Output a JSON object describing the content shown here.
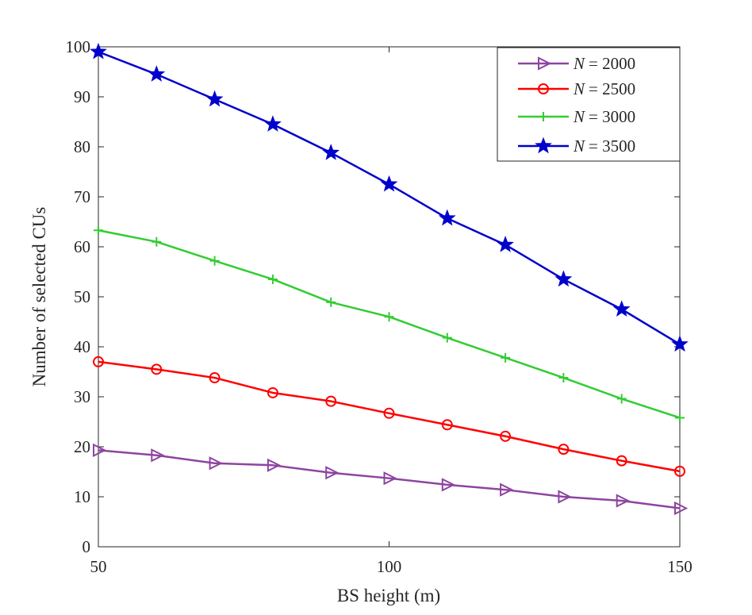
{
  "chart_data": {
    "type": "line",
    "title": "",
    "xlabel": "BS height (m)",
    "ylabel": "Number of  selected CUs",
    "xlim": [
      50,
      150
    ],
    "ylim": [
      0,
      100
    ],
    "xticks": [
      50,
      100,
      150
    ],
    "yticks": [
      0,
      10,
      20,
      30,
      40,
      50,
      60,
      70,
      80,
      90,
      100
    ],
    "grid": false,
    "legend_position": "top-right",
    "x": [
      50,
      60,
      70,
      80,
      90,
      100,
      110,
      120,
      130,
      140,
      150
    ],
    "series": [
      {
        "name": "N = 2000",
        "legend_var": "N",
        "legend_value": "= 2000",
        "marker": "triangle-right",
        "color": "#8E44A0",
        "values": [
          19.3,
          18.3,
          16.7,
          16.3,
          14.8,
          13.7,
          12.4,
          11.4,
          10.0,
          9.2,
          7.7
        ]
      },
      {
        "name": "N = 2500",
        "legend_var": "N",
        "legend_value": "= 2500",
        "marker": "circle",
        "color": "#FF0000",
        "values": [
          37.0,
          35.5,
          33.8,
          30.8,
          29.1,
          26.7,
          24.4,
          22.1,
          19.5,
          17.2,
          15.1
        ]
      },
      {
        "name": "N = 3000",
        "legend_var": "N",
        "legend_value": "= 3000",
        "marker": "plus",
        "color": "#33CC33",
        "values": [
          63.3,
          61.0,
          57.2,
          53.5,
          48.9,
          46.0,
          41.8,
          37.8,
          33.8,
          29.6,
          25.8
        ]
      },
      {
        "name": "N = 3500",
        "legend_var": "N",
        "legend_value": "= 3500",
        "marker": "star",
        "color": "#0000CC",
        "values": [
          99.0,
          94.5,
          89.5,
          84.5,
          78.8,
          72.5,
          65.7,
          60.4,
          53.5,
          47.5,
          40.5
        ]
      }
    ]
  }
}
